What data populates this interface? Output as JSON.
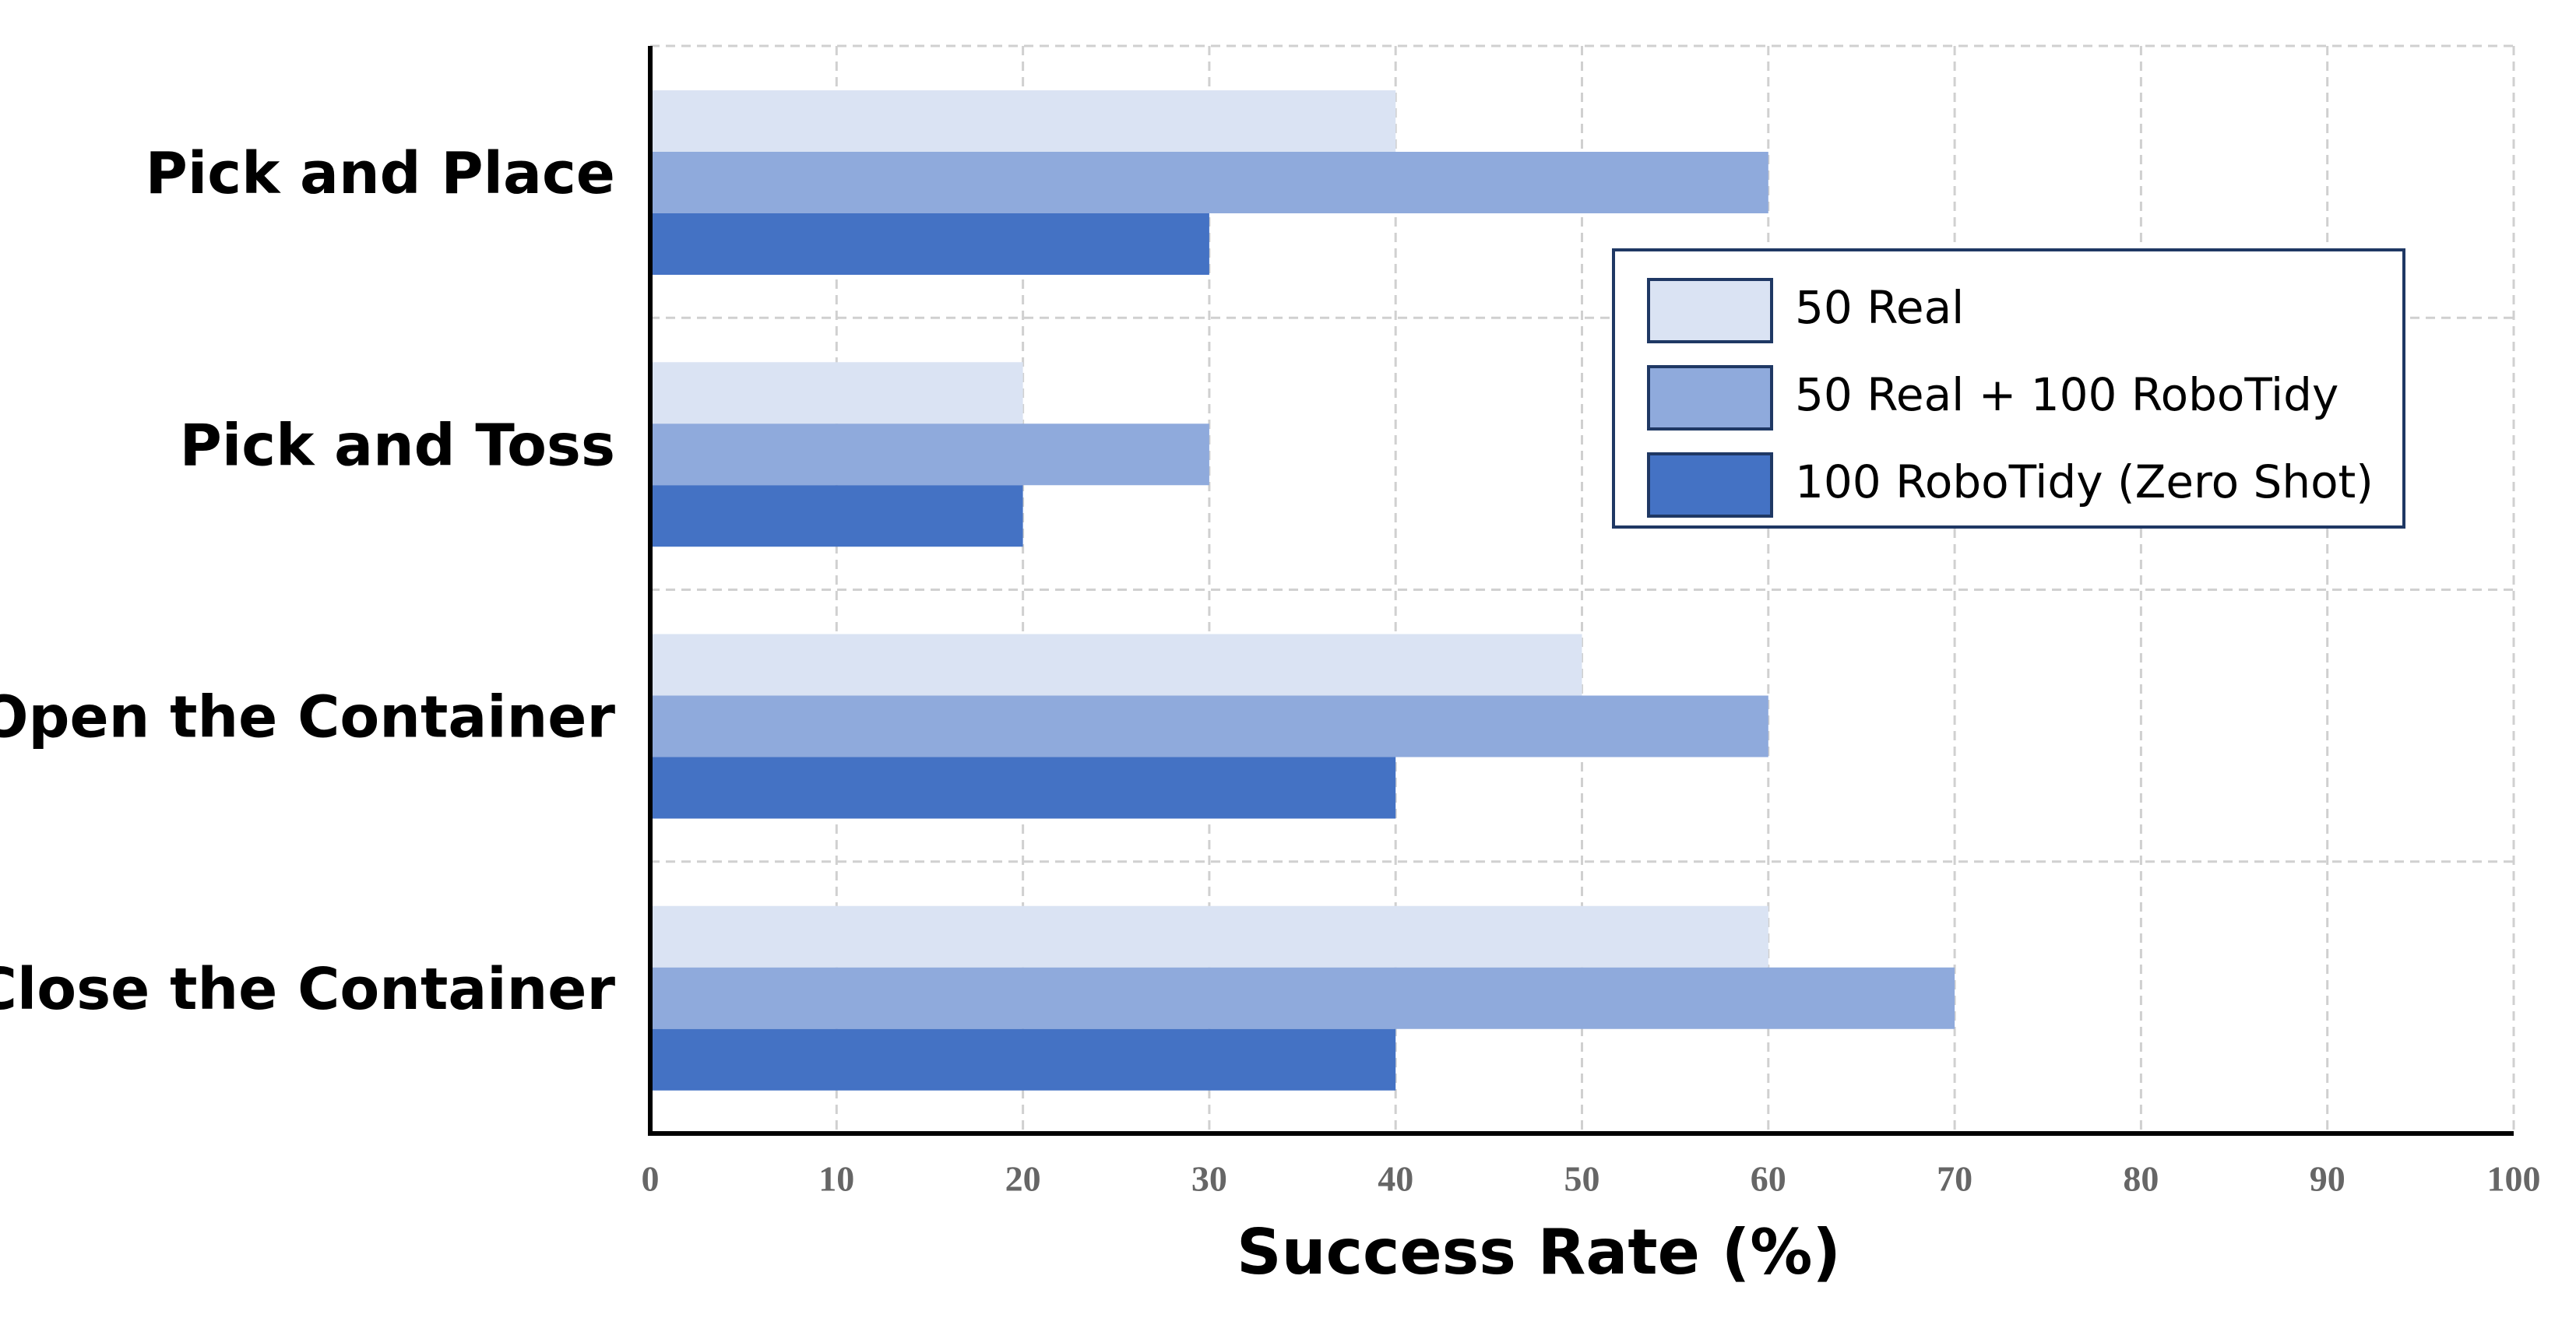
{
  "chart_data": {
    "type": "hbar",
    "xlabel": "Success Rate (%)",
    "categories": [
      "Pick and Place",
      "Pick and Toss",
      "Open the Container",
      "Close the Container"
    ],
    "series": [
      {
        "name": "50 Real",
        "color": "#dae3f3",
        "values": [
          40,
          20,
          50,
          60
        ]
      },
      {
        "name": "50 Real + 100 RoboTidy",
        "color": "#8faadc",
        "values": [
          60,
          30,
          60,
          70
        ]
      },
      {
        "name": "100 RoboTidy (Zero Shot)",
        "color": "#4472c4",
        "values": [
          30,
          20,
          40,
          40
        ]
      }
    ],
    "xlim": [
      0,
      100
    ],
    "xticks": [
      0,
      10,
      20,
      30,
      40,
      50,
      60,
      70,
      80,
      90,
      100
    ],
    "grid": true,
    "legend": "center right"
  }
}
